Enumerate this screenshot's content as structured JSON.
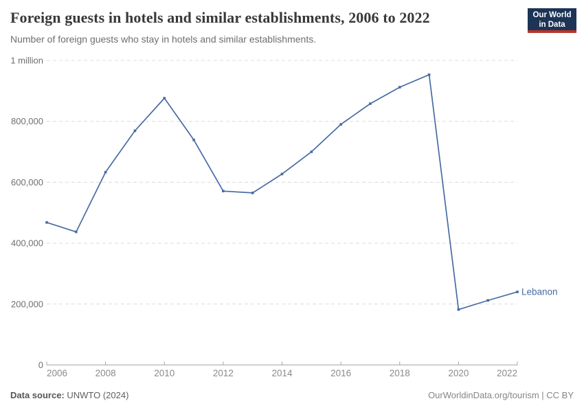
{
  "header": {
    "title": "Foreign guests in hotels and similar establishments, 2006 to 2022",
    "subtitle": "Number of foreign guests who stay in hotels and similar establishments."
  },
  "logo": {
    "line1": "Our World",
    "line2": "in Data",
    "bg_color": "#1d3456",
    "accent_color": "#b8352c"
  },
  "chart_data": {
    "type": "line",
    "title": "Foreign guests in hotels and similar establishments, 2006 to 2022",
    "series": [
      {
        "name": "Lebanon",
        "x": [
          2006,
          2007,
          2008,
          2009,
          2010,
          2011,
          2012,
          2013,
          2014,
          2015,
          2016,
          2017,
          2018,
          2019,
          2020,
          2021,
          2022
        ],
        "values": [
          468000,
          437000,
          633000,
          769000,
          876000,
          739000,
          571000,
          565000,
          627000,
          700000,
          790000,
          858000,
          912000,
          953000,
          182000,
          212000,
          240000
        ]
      }
    ],
    "xlabel": "",
    "ylabel": "",
    "xlim": [
      2006,
      2022
    ],
    "ylim": [
      0,
      1000000
    ],
    "xticks": [
      2006,
      2008,
      2010,
      2012,
      2014,
      2016,
      2018,
      2020,
      2022
    ],
    "yticks": [
      0,
      200000,
      400000,
      600000,
      800000,
      1000000
    ],
    "ytick_labels": [
      "0",
      "200,000",
      "400,000",
      "600,000",
      "800,000",
      "1 million"
    ],
    "grid": "dashed horizontal",
    "legend_position": "end-of-line",
    "series_label": "Lebanon",
    "line_color": "#466ba3",
    "grid_color": "#dcdcdc",
    "axis_color": "#a5a5a5",
    "tick_label_color": "#8a8a8a",
    "ytick_label_color": "#6e6e6e"
  },
  "footer": {
    "datasource_label": "Data source:",
    "datasource_value": " UNWTO (2024)",
    "credit": "OurWorldinData.org/tourism | CC BY"
  }
}
